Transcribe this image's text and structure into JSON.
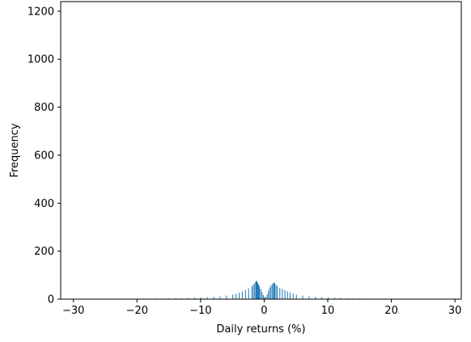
{
  "chart_data": {
    "type": "bar",
    "xlabel": "Daily returns (%)",
    "ylabel": "Frequency",
    "xlim": [
      -32,
      31
    ],
    "ylim": [
      0,
      1240
    ],
    "xticks": [
      -30,
      -20,
      -10,
      0,
      10,
      20,
      30
    ],
    "xtick_labels": [
      "−30",
      "−20",
      "−10",
      "0",
      "10",
      "20",
      "30"
    ],
    "yticks": [
      0,
      200,
      400,
      600,
      800,
      1000,
      1200
    ],
    "ytick_labels": [
      "0",
      "200",
      "400",
      "600",
      "800",
      "1000",
      "1200"
    ],
    "grid": false,
    "bar_color": "#1f77b4",
    "bin_width": 0.1,
    "bins": [
      [
        -30.0,
        1
      ],
      [
        -29.0,
        1
      ],
      [
        -28.0,
        1
      ],
      [
        -27.0,
        1
      ],
      [
        -26.0,
        1
      ],
      [
        -25.0,
        1
      ],
      [
        -24.0,
        1
      ],
      [
        -23.0,
        1
      ],
      [
        -22.0,
        1
      ],
      [
        -21.0,
        2
      ],
      [
        -20.0,
        2
      ],
      [
        -19.0,
        2
      ],
      [
        -18.0,
        2
      ],
      [
        -17.0,
        3
      ],
      [
        -16.0,
        3
      ],
      [
        -15.0,
        3
      ],
      [
        -14.0,
        4
      ],
      [
        -13.0,
        4
      ],
      [
        -12.0,
        5
      ],
      [
        -11.0,
        6
      ],
      [
        -10.0,
        7
      ],
      [
        -9.0,
        8
      ],
      [
        -8.0,
        10
      ],
      [
        -7.0,
        12
      ],
      [
        -6.0,
        15
      ],
      [
        -5.0,
        19
      ],
      [
        -4.5,
        22
      ],
      [
        -4.0,
        27
      ],
      [
        -3.5,
        32
      ],
      [
        -3.0,
        38
      ],
      [
        -2.5,
        45
      ],
      [
        -2.0,
        53
      ],
      [
        -1.8,
        60
      ],
      [
        -1.6,
        66
      ],
      [
        -1.4,
        72
      ],
      [
        -1.3,
        77
      ],
      [
        -1.2,
        74
      ],
      [
        -1.1,
        69
      ],
      [
        -1.0,
        64
      ],
      [
        -0.9,
        58
      ],
      [
        -0.8,
        52
      ],
      [
        -0.6,
        42
      ],
      [
        -0.4,
        30
      ],
      [
        -0.2,
        18
      ],
      [
        0.0,
        10
      ],
      [
        0.2,
        8
      ],
      [
        0.4,
        20
      ],
      [
        0.6,
        35
      ],
      [
        0.8,
        48
      ],
      [
        1.0,
        57
      ],
      [
        1.2,
        63
      ],
      [
        1.4,
        67
      ],
      [
        1.5,
        70
      ],
      [
        1.6,
        66
      ],
      [
        1.8,
        60
      ],
      [
        2.0,
        54
      ],
      [
        2.4,
        47
      ],
      [
        2.8,
        42
      ],
      [
        3.2,
        38
      ],
      [
        3.6,
        33
      ],
      [
        4.0,
        28
      ],
      [
        4.5,
        23
      ],
      [
        5.0,
        19
      ],
      [
        6.0,
        15
      ],
      [
        7.0,
        12
      ],
      [
        8.0,
        10
      ],
      [
        9.0,
        8
      ],
      [
        10.0,
        7
      ],
      [
        11.0,
        6
      ],
      [
        12.0,
        5
      ],
      [
        13.0,
        4
      ],
      [
        14.0,
        4
      ],
      [
        15.0,
        3
      ],
      [
        16.0,
        3
      ],
      [
        17.0,
        2
      ],
      [
        18.0,
        2
      ],
      [
        19.0,
        2
      ],
      [
        20.0,
        2
      ],
      [
        21.0,
        1
      ],
      [
        22.0,
        1
      ],
      [
        23.0,
        1
      ],
      [
        24.0,
        1
      ],
      [
        25.0,
        1
      ],
      [
        26.0,
        1
      ],
      [
        27.0,
        1
      ],
      [
        28.0,
        1
      ]
    ]
  }
}
